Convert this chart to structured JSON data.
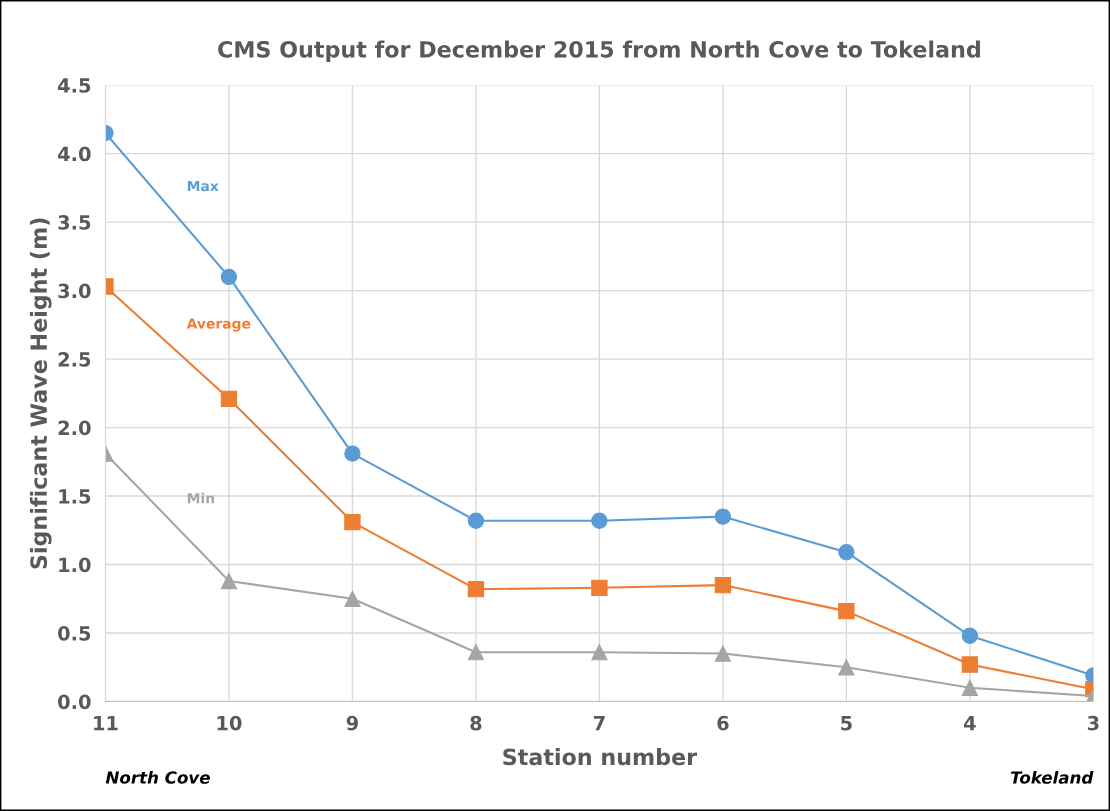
{
  "chart_data": {
    "type": "line",
    "title": "CMS Output for December 2015 from North Cove to Tokeland",
    "xlabel": "Station number",
    "ylabel": "Significant Wave Height (m)",
    "categories": [
      "11",
      "10",
      "9",
      "8",
      "7",
      "6",
      "5",
      "4",
      "3"
    ],
    "series": [
      {
        "name": "Max",
        "color": "#5b9bd5",
        "marker": "circle",
        "values": [
          4.15,
          3.1,
          1.81,
          1.32,
          1.32,
          1.35,
          1.09,
          0.48,
          0.19
        ]
      },
      {
        "name": "Average",
        "color": "#ed7d31",
        "marker": "square",
        "values": [
          3.03,
          2.21,
          1.31,
          0.82,
          0.83,
          0.85,
          0.66,
          0.27,
          0.09
        ]
      },
      {
        "name": "Min",
        "color": "#a5a5a5",
        "marker": "triangle",
        "values": [
          1.81,
          0.88,
          0.75,
          0.36,
          0.36,
          0.35,
          0.25,
          0.1,
          0.04
        ]
      }
    ],
    "ylim": [
      0,
      4.5
    ],
    "yticks": [
      {
        "value": 0,
        "label": "0.0"
      },
      0.5,
      {
        "value": 1,
        "label": "1.0"
      },
      1.5,
      {
        "value": 2,
        "label": "2.0"
      },
      2.5,
      {
        "value": 3,
        "label": "3.0"
      },
      3.5,
      {
        "value": 4,
        "label": "4.0"
      },
      4.5
    ],
    "grid": true,
    "legend": false,
    "line_style": "solid",
    "annotations": [
      "North Cove",
      "Tokeland"
    ]
  }
}
